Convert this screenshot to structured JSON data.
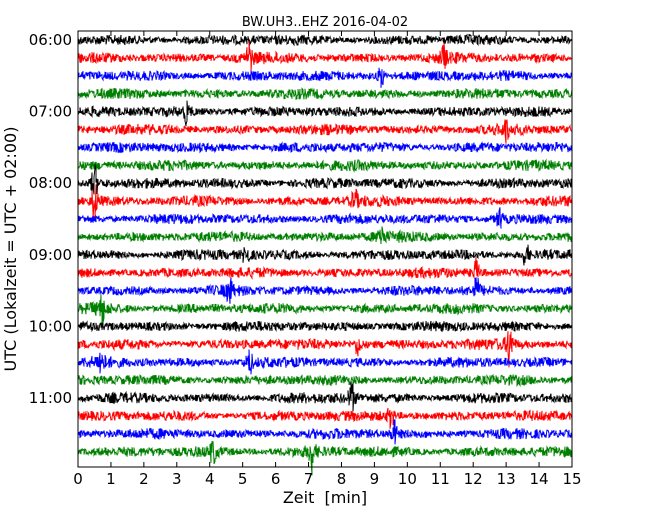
{
  "chart_data": {
    "type": "line",
    "title": "BW.UH3..EHZ 2016-04-02",
    "xlabel": "Zeit  [min]",
    "ylabel": "UTC (Lokalzeit = UTC + 02:00)",
    "xlim": [
      0,
      15
    ],
    "x_ticks": [
      "0",
      "1",
      "2",
      "3",
      "4",
      "5",
      "6",
      "7",
      "8",
      "9",
      "10",
      "11",
      "12",
      "13",
      "14",
      "15"
    ],
    "y_ticks": [
      "06:00",
      "07:00",
      "08:00",
      "09:00",
      "10:00",
      "11:00"
    ],
    "trace_minutes": 15,
    "trace_count": 24,
    "color_cycle": [
      "#000000",
      "#ff0000",
      "#0000ff",
      "#008000"
    ],
    "events": [
      {
        "trace": 1,
        "minute": 5.2,
        "amp": 2.2
      },
      {
        "trace": 1,
        "minute": 11.1,
        "amp": 1.6
      },
      {
        "trace": 2,
        "minute": 9.2,
        "amp": 1.8
      },
      {
        "trace": 4,
        "minute": 3.3,
        "amp": 1.5
      },
      {
        "trace": 5,
        "minute": 13.0,
        "amp": 1.4
      },
      {
        "trace": 8,
        "minute": 0.5,
        "amp": 2.6
      },
      {
        "trace": 9,
        "minute": 0.5,
        "amp": 3.0
      },
      {
        "trace": 9,
        "minute": 8.4,
        "amp": 1.6
      },
      {
        "trace": 10,
        "minute": 12.8,
        "amp": 1.6
      },
      {
        "trace": 11,
        "minute": 9.2,
        "amp": 1.8
      },
      {
        "trace": 12,
        "minute": 5.1,
        "amp": 1.8
      },
      {
        "trace": 12,
        "minute": 13.6,
        "amp": 1.8
      },
      {
        "trace": 13,
        "minute": 12.1,
        "amp": 1.8
      },
      {
        "trace": 14,
        "minute": 4.6,
        "amp": 1.8
      },
      {
        "trace": 14,
        "minute": 12.1,
        "amp": 1.8
      },
      {
        "trace": 15,
        "minute": 0.7,
        "amp": 2.2
      },
      {
        "trace": 17,
        "minute": 13.1,
        "amp": 3.2
      },
      {
        "trace": 17,
        "minute": 8.5,
        "amp": 1.8
      },
      {
        "trace": 18,
        "minute": 0.7,
        "amp": 2.0
      },
      {
        "trace": 18,
        "minute": 5.2,
        "amp": 2.0
      },
      {
        "trace": 20,
        "minute": 8.3,
        "amp": 2.2
      },
      {
        "trace": 21,
        "minute": 9.5,
        "amp": 1.8
      },
      {
        "trace": 22,
        "minute": 9.6,
        "amp": 1.6
      },
      {
        "trace": 23,
        "minute": 7.1,
        "amp": 2.6
      },
      {
        "trace": 23,
        "minute": 4.1,
        "amp": 1.6
      }
    ]
  }
}
